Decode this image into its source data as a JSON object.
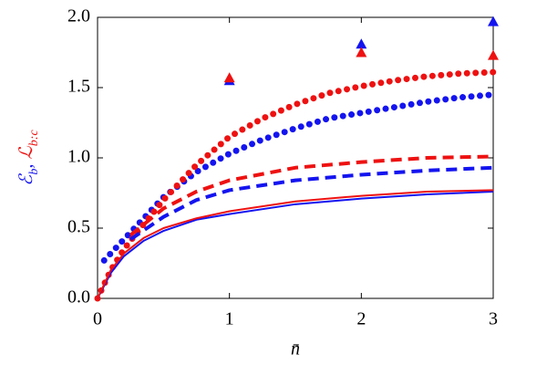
{
  "chart_data": {
    "type": "line",
    "x_label": "n̄",
    "y_label_parts": [
      {
        "text": "ℰ",
        "color": "#1414f0"
      },
      {
        "text": "b",
        "color": "#1414f0",
        "sub": true
      },
      {
        "text": ", ",
        "color": "#1414f0"
      },
      {
        "text": "ℒ",
        "color": "#ee1111"
      },
      {
        "text": "b:c",
        "color": "#ee1111",
        "sub": true
      }
    ],
    "xlim": [
      0,
      3
    ],
    "ylim": [
      0,
      2
    ],
    "xticks": [
      0,
      1,
      2,
      3
    ],
    "yticks": [
      {
        "value": 0,
        "label": "0.0"
      },
      {
        "value": 0.5,
        "label": "0.5"
      },
      {
        "value": 1,
        "label": "1.0"
      },
      {
        "value": 1.5,
        "label": "1.5"
      },
      {
        "value": 2,
        "label": "2.0"
      }
    ],
    "series": [
      {
        "color": "#1414f0",
        "style": "dotted",
        "x": [
          0.05,
          0.1,
          0.2,
          0.3,
          0.5,
          0.75,
          1,
          1.25,
          1.5,
          1.75,
          2,
          2.25,
          2.5,
          2.75,
          3
        ],
        "values": [
          0.27,
          0.32,
          0.42,
          0.52,
          0.72,
          0.9,
          1.03,
          1.13,
          1.21,
          1.28,
          1.32,
          1.36,
          1.4,
          1.43,
          1.45
        ]
      },
      {
        "color": "#ee1111",
        "style": "dotted",
        "x": [
          0,
          0.05,
          0.1,
          0.2,
          0.3,
          0.5,
          0.75,
          1,
          1.25,
          1.5,
          1.75,
          2,
          2.25,
          2.5,
          2.75,
          3
        ],
        "values": [
          0,
          0.1,
          0.2,
          0.35,
          0.47,
          0.7,
          0.95,
          1.15,
          1.28,
          1.38,
          1.46,
          1.51,
          1.55,
          1.58,
          1.6,
          1.61
        ]
      },
      {
        "color": "#1414f0",
        "style": "dashed",
        "x": [
          0.25,
          0.5,
          0.75,
          1,
          1.5,
          2,
          2.5,
          3
        ],
        "values": [
          0.42,
          0.58,
          0.7,
          0.77,
          0.84,
          0.88,
          0.91,
          0.93
        ]
      },
      {
        "color": "#ee1111",
        "style": "dashed",
        "x": [
          0.25,
          0.5,
          0.75,
          1,
          1.5,
          2,
          2.5,
          3
        ],
        "values": [
          0.45,
          0.64,
          0.76,
          0.84,
          0.93,
          0.97,
          1.0,
          1.01
        ]
      },
      {
        "color": "#1414f0",
        "style": "solid",
        "x": [
          0,
          0.1,
          0.2,
          0.35,
          0.5,
          0.75,
          1,
          1.5,
          2,
          2.5,
          3
        ],
        "values": [
          0,
          0.18,
          0.3,
          0.41,
          0.48,
          0.56,
          0.6,
          0.67,
          0.71,
          0.74,
          0.76
        ]
      },
      {
        "color": "#ee1111",
        "style": "solid",
        "x": [
          0,
          0.1,
          0.2,
          0.35,
          0.5,
          0.75,
          1,
          1.5,
          2,
          2.5,
          3
        ],
        "values": [
          0,
          0.2,
          0.32,
          0.43,
          0.5,
          0.57,
          0.62,
          0.69,
          0.73,
          0.76,
          0.77
        ]
      },
      {
        "color": "#1414f0",
        "style": "triangle",
        "x": [
          1,
          2,
          3
        ],
        "values": [
          1.55,
          1.81,
          1.97
        ]
      },
      {
        "color": "#ee1111",
        "style": "triangle",
        "x": [
          1,
          2,
          3
        ],
        "values": [
          1.57,
          1.75,
          1.73
        ]
      }
    ]
  }
}
